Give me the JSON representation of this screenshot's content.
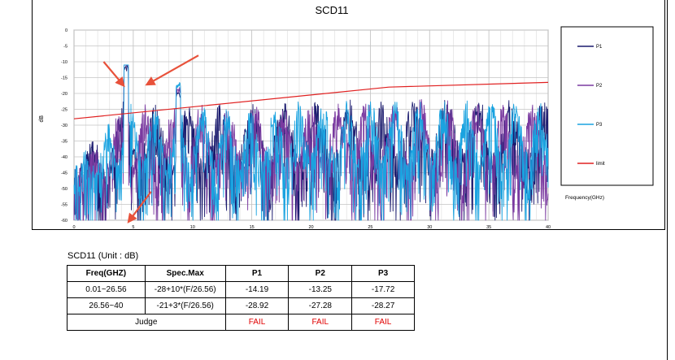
{
  "chart_data": {
    "type": "line",
    "title": "SCD11",
    "xlabel": "Frequency(GHz)",
    "ylabel": "dB",
    "xlim": [
      0,
      40
    ],
    "ylim": [
      -60,
      0
    ],
    "x_ticks": [
      "0",
      "5",
      "10",
      "15",
      "20",
      "25",
      "30",
      "35",
      "40"
    ],
    "y_ticks": [
      "0",
      "-5",
      "-10",
      "-15",
      "-20",
      "-25",
      "-30",
      "-35",
      "-40",
      "-45",
      "-50",
      "-55",
      "-60"
    ],
    "grid": true,
    "legend_position": "right",
    "series": [
      {
        "name": "P1",
        "color": "#1a1a6e",
        "kind": "noise",
        "seed": 11
      },
      {
        "name": "P2",
        "color": "#7a3aa0",
        "kind": "noise",
        "seed": 23
      },
      {
        "name": "P3",
        "color": "#1aa3e0",
        "kind": "noise",
        "seed": 37
      },
      {
        "name": "limit",
        "color": "#e02020",
        "kind": "line",
        "x": [
          0,
          26.56,
          40
        ],
        "y": [
          -28,
          -18,
          -16.5
        ]
      }
    ],
    "peaks": [
      {
        "x": 4.4,
        "y": -13
      },
      {
        "x": 8.8,
        "y": -21.5
      }
    ],
    "annotations": [
      {
        "type": "arrow",
        "from": [
          2.5,
          -10
        ],
        "to": [
          4.3,
          -18
        ]
      },
      {
        "type": "arrow",
        "from": [
          10.5,
          -8
        ],
        "to": [
          6.0,
          -17.5
        ]
      },
      {
        "type": "arrow",
        "from": [
          6.5,
          -51
        ],
        "to": [
          4.5,
          -61
        ]
      }
    ]
  },
  "table": {
    "title": "SCD11  (Unit : dB)",
    "headers": [
      "Freq(GHZ)",
      "Spec.Max",
      "P1",
      "P2",
      "P3"
    ],
    "rows": [
      [
        "0.01~26.56",
        "-28+10*(F/26.56)",
        "-14.19",
        "-13.25",
        "-17.72"
      ],
      [
        "26.56~40",
        "-21+3*(F/26.56)",
        "-28.92",
        "-27.28",
        "-28.27"
      ]
    ],
    "judge_label": "Judge",
    "judge": [
      "FAIL",
      "FAIL",
      "FAIL"
    ]
  }
}
